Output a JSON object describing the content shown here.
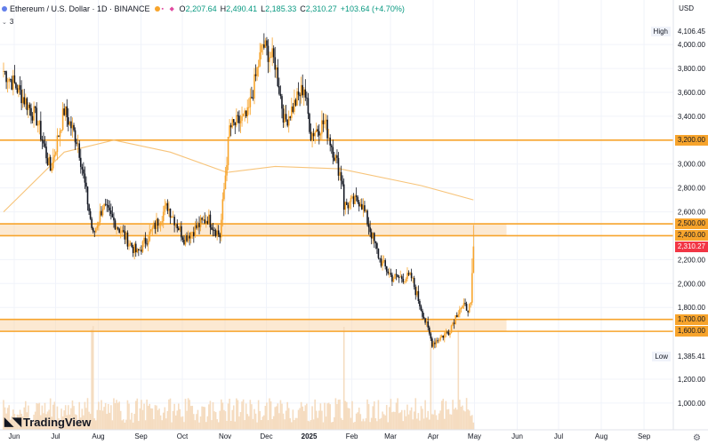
{
  "legend": {
    "symbol": "Ethereum / U.S. Dollar · 1D · BINANCE",
    "o_label": "O",
    "o_value": "2,207.64",
    "h_label": "H",
    "h_value": "2,490.41",
    "l_label": "L",
    "l_value": "2,185.33",
    "c_label": "C",
    "c_value": "2,310.27",
    "change": "+103.64 (+4.70%)"
  },
  "indicators": {
    "collapse_icon": "chevron-down-icon",
    "count": "3"
  },
  "currency": "USD",
  "branding": {
    "logo_text": "TradingView"
  },
  "colors": {
    "up": "#089981",
    "down": "#131722",
    "level": "#f7a42c",
    "zone_fill": "#f9d7ad",
    "ma": "#f7c47a",
    "last_price": "#f23645",
    "volume": "#f5dcc0"
  },
  "chart_data": {
    "type": "candlestick",
    "title": "Ethereum / U.S. Dollar · 1D · BINANCE",
    "x_ticks": [
      "Jun",
      "Jul",
      "Aug",
      "Sep",
      "Oct",
      "Nov",
      "Dec",
      "2025",
      "Feb",
      "Mar",
      "Apr",
      "May",
      "Jun",
      "Jul",
      "Aug",
      "Sep"
    ],
    "y_ticks": [
      "1,000.00",
      "1,200.00",
      "1,800.00",
      "2,000.00",
      "2,200.00",
      "2,600.00",
      "2,800.00",
      "3,000.00",
      "3,400.00",
      "3,600.00",
      "3,800.00",
      "4,000.00"
    ],
    "ylim": [
      880,
      4150
    ],
    "high_label": "High",
    "high_value": "4,106.45",
    "low_label": "Low",
    "low_value": "1,385.41",
    "last_price": 2310.27,
    "last_price_label": "2,310.27",
    "horizontal_levels": [
      {
        "value": 3200,
        "label": "3,200.00"
      },
      {
        "value": 2500,
        "label": "2,500.00"
      },
      {
        "value": 2400,
        "label": "2,400.00"
      },
      {
        "value": 1700,
        "label": "1,700.00"
      },
      {
        "value": 1600,
        "label": "1,600.00"
      }
    ],
    "zones": [
      {
        "from": 2400,
        "to": 2500,
        "start": "2024-06-01",
        "end": "2025-06-01"
      },
      {
        "from": 1600,
        "to": 1700,
        "start": "2024-06-01",
        "end": "2025-06-01"
      }
    ],
    "close_keypoints": [
      {
        "date": "2024-06-01",
        "price": 3780
      },
      {
        "date": "2024-06-10",
        "price": 3650
      },
      {
        "date": "2024-06-25",
        "price": 3380
      },
      {
        "date": "2024-07-05",
        "price": 2950
      },
      {
        "date": "2024-07-15",
        "price": 3450
      },
      {
        "date": "2024-07-25",
        "price": 3180
      },
      {
        "date": "2024-08-05",
        "price": 2400
      },
      {
        "date": "2024-08-12",
        "price": 2650
      },
      {
        "date": "2024-09-06",
        "price": 2250
      },
      {
        "date": "2024-09-28",
        "price": 2650
      },
      {
        "date": "2024-10-10",
        "price": 2380
      },
      {
        "date": "2024-10-27",
        "price": 2550
      },
      {
        "date": "2024-11-05",
        "price": 2400
      },
      {
        "date": "2024-11-12",
        "price": 3300
      },
      {
        "date": "2024-11-25",
        "price": 3400
      },
      {
        "date": "2024-12-06",
        "price": 4000
      },
      {
        "date": "2024-12-15",
        "price": 3850
      },
      {
        "date": "2024-12-22",
        "price": 3350
      },
      {
        "date": "2025-01-05",
        "price": 3650
      },
      {
        "date": "2025-01-10",
        "price": 3250
      },
      {
        "date": "2025-01-20",
        "price": 3350
      },
      {
        "date": "2025-02-02",
        "price": 2850
      },
      {
        "date": "2025-02-03",
        "price": 2650
      },
      {
        "date": "2025-02-15",
        "price": 2700
      },
      {
        "date": "2025-03-01",
        "price": 2200
      },
      {
        "date": "2025-03-10",
        "price": 2050
      },
      {
        "date": "2025-03-24",
        "price": 2050
      },
      {
        "date": "2025-04-08",
        "price": 1500
      },
      {
        "date": "2025-04-20",
        "price": 1600
      },
      {
        "date": "2025-04-28",
        "price": 1800
      },
      {
        "date": "2025-05-06",
        "price": 1800
      },
      {
        "date": "2025-05-08",
        "price": 2310
      }
    ],
    "moving_average": [
      {
        "date": "2024-06-01",
        "price": 2600
      },
      {
        "date": "2024-07-15",
        "price": 3100
      },
      {
        "date": "2024-08-20",
        "price": 3200
      },
      {
        "date": "2024-09-30",
        "price": 3100
      },
      {
        "date": "2024-11-10",
        "price": 2930
      },
      {
        "date": "2024-12-15",
        "price": 2980
      },
      {
        "date": "2025-01-31",
        "price": 2960
      },
      {
        "date": "2025-03-31",
        "price": 2820
      },
      {
        "date": "2025-05-08",
        "price": 2700
      }
    ]
  }
}
